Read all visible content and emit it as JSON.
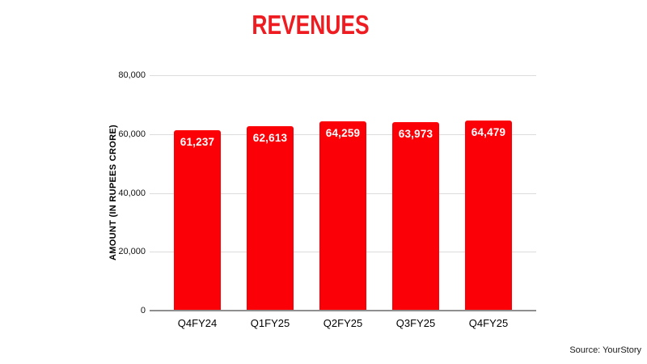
{
  "page": {
    "title": "REVENUES",
    "source": "Source: YourStory",
    "accent_color": "#ee1c21"
  },
  "chart_data": {
    "type": "bar",
    "title": "REVENUES",
    "categories": [
      "Q4FY24",
      "Q1FY25",
      "Q2FY25",
      "Q3FY25",
      "Q4FY25"
    ],
    "values": [
      61237,
      62613,
      64259,
      63973,
      64479
    ],
    "value_labels": [
      "61,237",
      "62,613",
      "64,259",
      "63,973",
      "64,479"
    ],
    "xlabel": "",
    "ylabel": "AMOUNT (IN RUPEES CRORE)",
    "ylim": [
      0,
      80000
    ],
    "ytick_step": 20000,
    "ytick_labels": [
      "0",
      "20,000",
      "40,000",
      "60,000",
      "80,000"
    ],
    "grid": true,
    "legend": "none",
    "bar_color": "#fb0007",
    "bar_label_color": "#ffffff",
    "gridline_color": "#dcdcdc",
    "axis_line_color": "#8f8f8f"
  }
}
